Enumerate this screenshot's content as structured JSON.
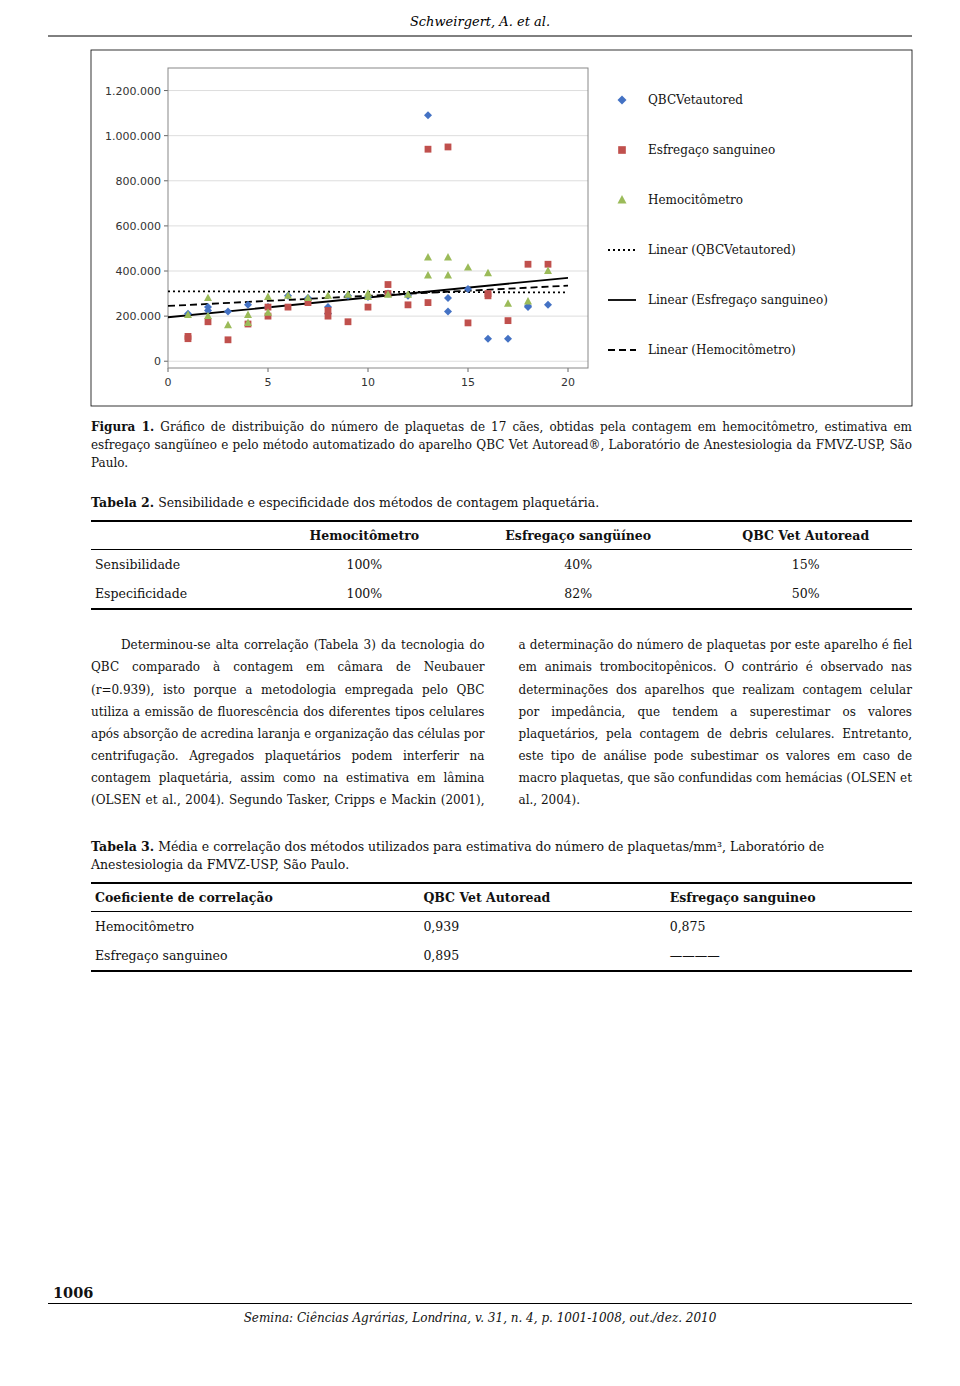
{
  "page_header": "Schweirgert, A. et al.",
  "chart_data": {
    "type": "scatter",
    "xlim": [
      0,
      21
    ],
    "ylim": [
      -30000,
      1300000
    ],
    "xticks": [
      0,
      5,
      10,
      15,
      20
    ],
    "yticks": [
      0,
      {
        "value": 200000,
        "label": "200.000"
      },
      {
        "value": 400000,
        "label": "400.000"
      },
      {
        "value": 600000,
        "label": "600.000"
      },
      {
        "value": 800000,
        "label": "800.000"
      },
      {
        "value": 1000000,
        "label": "1.000.000"
      },
      {
        "value": 1200000,
        "label": "1.200.000"
      }
    ],
    "grid": true,
    "legend": "right",
    "series": [
      {
        "name": "QBCVetautored",
        "color": "#4472C4",
        "marker": "diamond",
        "x": [
          1,
          2,
          2,
          3,
          4,
          5,
          6,
          7,
          7,
          8,
          8,
          9,
          10,
          11,
          12,
          13,
          14,
          14,
          15,
          16,
          17,
          18,
          18,
          19
        ],
        "values": [
          210000,
          225000,
          240000,
          220000,
          250000,
          240000,
          290000,
          270000,
          280000,
          210000,
          240000,
          290000,
          285000,
          300000,
          290000,
          1090000,
          280000,
          220000,
          320000,
          100000,
          100000,
          240000,
          245000,
          250000
        ]
      },
      {
        "name": "Esfregaço sanguineo",
        "color": "#C0504D",
        "marker": "square",
        "x": [
          1,
          1,
          2,
          3,
          4,
          5,
          5,
          6,
          7,
          8,
          8,
          9,
          10,
          11,
          11,
          12,
          13,
          13,
          14,
          15,
          16,
          16,
          17,
          18,
          19
        ],
        "values": [
          100000,
          110000,
          175000,
          95000,
          165000,
          240000,
          200000,
          240000,
          260000,
          225000,
          200000,
          175000,
          240000,
          300000,
          340000,
          250000,
          260000,
          940000,
          950000,
          170000,
          300000,
          290000,
          180000,
          430000,
          430000
        ]
      },
      {
        "name": "Hemocitômetro",
        "color": "#9BBB59",
        "marker": "triangle",
        "x": [
          1,
          2,
          2,
          3,
          4,
          4,
          5,
          5,
          6,
          7,
          8,
          9,
          10,
          10,
          11,
          12,
          13,
          13,
          14,
          14,
          15,
          16,
          17,
          18,
          19
        ],
        "values": [
          205000,
          280000,
          200000,
          160000,
          170000,
          205000,
          285000,
          215000,
          290000,
          280000,
          290000,
          295000,
          285000,
          300000,
          295000,
          295000,
          460000,
          380000,
          460000,
          380000,
          415000,
          390000,
          255000,
          265000,
          400000
        ]
      },
      {
        "name": "Linear (QBCVetautored)",
        "type": "line",
        "color": "#000000",
        "line_style": "dotted",
        "x": [
          0,
          20
        ],
        "values": [
          310000,
          305000
        ]
      },
      {
        "name": "Linear (Esfregaço sanguineo)",
        "type": "line",
        "color": "#000000",
        "line_style": "solid",
        "x": [
          0,
          20
        ],
        "values": [
          195000,
          370000
        ]
      },
      {
        "name": "Linear (Hemocitômetro)",
        "type": "line",
        "color": "#000000",
        "line_style": "dashed",
        "x": [
          0,
          20
        ],
        "values": [
          245000,
          335000
        ]
      }
    ]
  },
  "caption": {
    "label": "Figura 1.",
    "text": "Gráfico de distribuição do número de plaquetas de 17 cães, obtidas pela contagem em hemocitômetro, estimativa em esfregaço sangüíneo e pelo método automatizado do aparelho QBC Vet Autoread®, Laboratório de Anestesiologia da FMVZ-USP, São Paulo."
  },
  "table2": {
    "label": "Tabela 2.",
    "title": "Sensibilidade e especificidade dos métodos de contagem plaquetária.",
    "columns": [
      "Hemocitômetro",
      "Esfregaço sangüíneo",
      "QBC Vet Autoread"
    ],
    "rows": [
      {
        "label": "Sensibilidade",
        "cells": [
          "100%",
          "40%",
          "15%"
        ]
      },
      {
        "label": "Especificidade",
        "cells": [
          "100%",
          "82%",
          "50%"
        ]
      }
    ]
  },
  "body": "Determinou-se alta correlação (Tabela 3) da tecnologia do QBC comparado à contagem em câmara de Neubauer (r=0.939), isto porque a metodologia empregada pelo QBC utiliza a emissão de fluorescência dos diferentes tipos celulares após absorção de acredina laranja e organização das células por centrifugação. Agregados plaquetários podem interferir na contagem plaquetária, assim como na estimativa em lâmina (OLSEN et al., 2004). Segundo Tasker, Cripps e Mackin (2001), a determinação do número de plaquetas por este aparelho é fiel em animais trombocitopênicos. O contrário é observado nas determinações dos aparelhos que realizam contagem celular por impedância, que tendem a superestimar os valores plaquetários, pela contagem de debris celulares. Entretanto, este tipo de análise pode subestimar os valores em caso de macro plaquetas, que são confundidas com hemácias (OLSEN et al., 2004).",
  "table3": {
    "label": "Tabela 3.",
    "title": "Média e correlação dos métodos utilizados para estimativa do número de plaquetas/mm³, Laboratório de Anestesiologia da FMVZ-USP, São Paulo.",
    "columns": [
      "Coeficiente de correlação",
      "QBC Vet Autoread",
      "Esfregaço sanguineo"
    ],
    "rows": [
      [
        "Hemocitômetro",
        "0,939",
        "0,875"
      ],
      [
        "Esfregaço sanguineo",
        "0,895",
        "————"
      ]
    ]
  },
  "page_number": "1006",
  "footer": "Semina: Ciências Agrárias, Londrina, v. 31, n. 4, p. 1001-1008, out./dez. 2010"
}
